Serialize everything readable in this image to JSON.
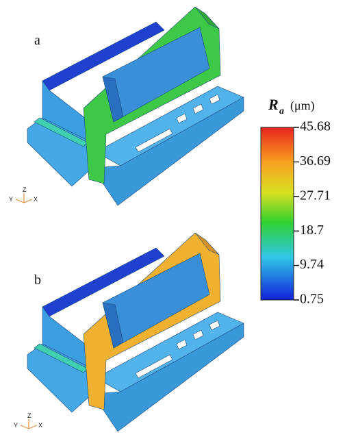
{
  "panels": [
    {
      "label": "a"
    },
    {
      "label": "b"
    }
  ],
  "axes_triad": {
    "y": "Y",
    "z": "Z",
    "x": "X"
  },
  "colorbar": {
    "symbol": "R",
    "subscript": "a",
    "unit": "(μm)",
    "range": [
      0.75,
      45.68
    ],
    "ticks": [
      45.68,
      36.69,
      27.71,
      18.7,
      9.74,
      0.75
    ]
  }
}
